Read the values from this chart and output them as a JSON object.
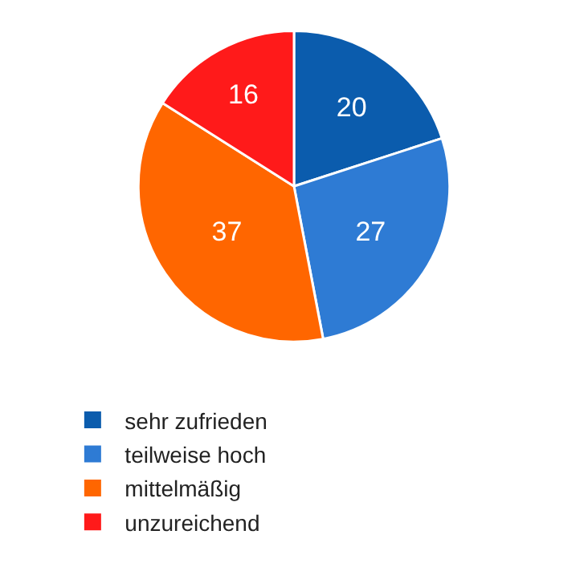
{
  "chart_data": {
    "type": "pie",
    "categories": [
      "sehr zufrieden",
      "teilweise hoch",
      "mittelmäßig",
      "unzureichend"
    ],
    "values": [
      20,
      27,
      37,
      16
    ],
    "colors": [
      "#0b5cad",
      "#2e7bd4",
      "#ff6600",
      "#ff1a1a"
    ],
    "data_labels": true,
    "legend": "bottom"
  }
}
